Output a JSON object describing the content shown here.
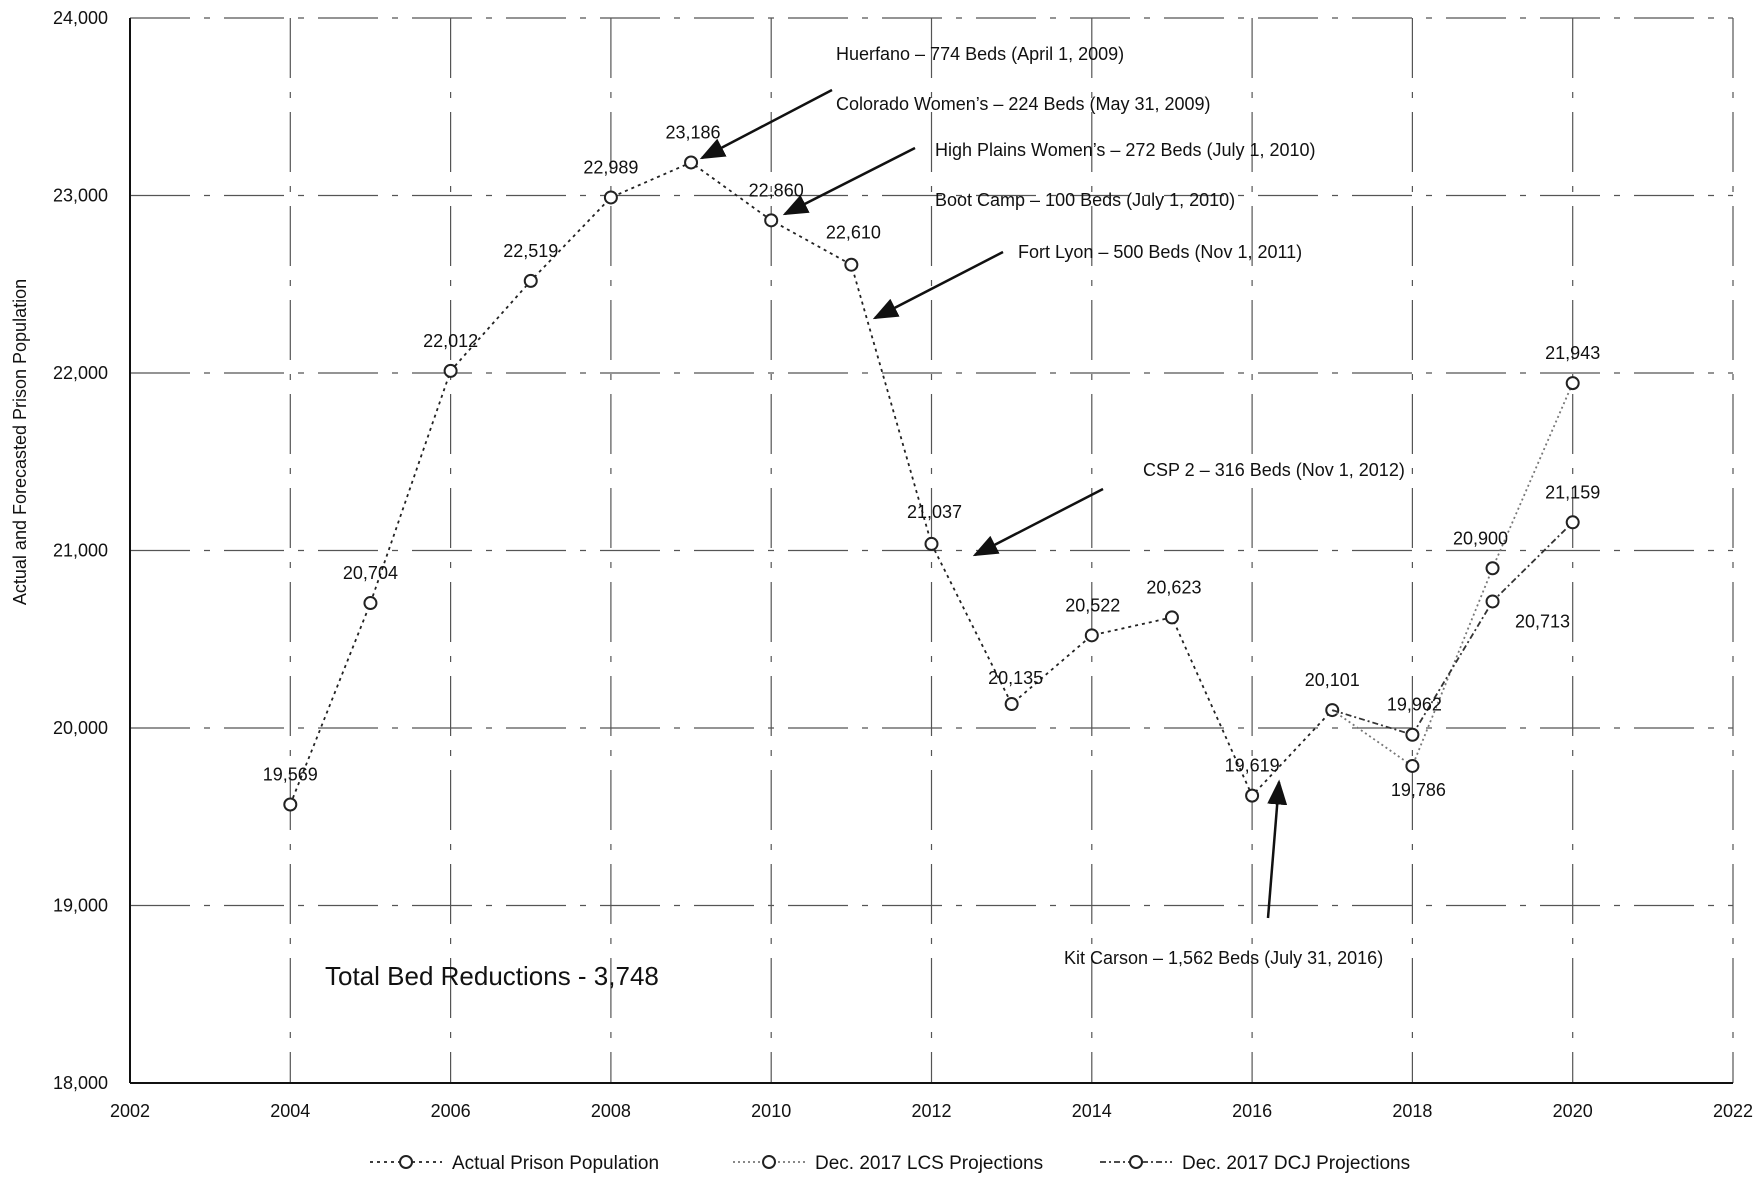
{
  "chart_data": {
    "type": "line",
    "ylabel": "Actual and Forecasted Prison Population",
    "xlim": [
      2002,
      2022
    ],
    "ylim": [
      18000,
      24000
    ],
    "x_ticks": [
      2002,
      2004,
      2006,
      2008,
      2010,
      2012,
      2014,
      2016,
      2018,
      2020,
      2022
    ],
    "x_tick_labels": [
      "2002",
      "2004",
      "2006",
      "2008",
      "2010",
      "2012",
      "2014",
      "2016",
      "2018",
      "2020",
      "2022"
    ],
    "y_ticks": [
      18000,
      19000,
      20000,
      21000,
      22000,
      23000,
      24000
    ],
    "y_tick_labels": [
      "18,000",
      "19,000",
      "20,000",
      "21,000",
      "22,000",
      "23,000",
      "24,000"
    ],
    "grid": true,
    "legend_position": "bottom",
    "series": [
      {
        "name": "Actual Prison Population",
        "x": [
          2004,
          2005,
          2006,
          2007,
          2008,
          2009,
          2010,
          2011,
          2012,
          2013,
          2014,
          2015,
          2016,
          2017
        ],
        "y": [
          19569,
          20704,
          22012,
          22519,
          22989,
          23186,
          22860,
          22610,
          21037,
          20135,
          20522,
          20623,
          19619,
          20101
        ],
        "labels": [
          "19,569",
          "20,704",
          "22,012",
          "22,519",
          "22,989",
          "23,186",
          "22,860",
          "22,610",
          "21,037",
          "20,135",
          "20,522",
          "20,623",
          "19,619",
          "20,101"
        ]
      },
      {
        "name": "Dec. 2017 LCS Projections",
        "x": [
          2017,
          2018,
          2019,
          2020
        ],
        "y": [
          20101,
          19786,
          20900,
          21943
        ],
        "labels": [
          "",
          "19,786",
          "20,900",
          "21,943"
        ]
      },
      {
        "name": "Dec. 2017 DCJ Projections",
        "x": [
          2017,
          2018,
          2019,
          2020
        ],
        "y": [
          20101,
          19962,
          20713,
          21159
        ],
        "labels": [
          "",
          "19,962",
          "20,713",
          "21,159"
        ]
      }
    ],
    "annotations": [
      {
        "text": "Huerfano – 774 Beds (April 1, 2009)"
      },
      {
        "text": "Colorado Women’s – 224 Beds (May 31, 2009)"
      },
      {
        "text": "High Plains Women’s – 272 Beds (July 1, 2010)"
      },
      {
        "text": "Boot Camp – 100 Beds (July 1, 2010)"
      },
      {
        "text": "Fort Lyon – 500 Beds (Nov 1, 2011)"
      },
      {
        "text": "CSP 2 – 316 Beds (Nov 1, 2012)"
      },
      {
        "text": "Kit Carson – 1,562 Beds (July 31, 2016)"
      }
    ],
    "total_note": "Total Bed Reductions - 3,748"
  }
}
